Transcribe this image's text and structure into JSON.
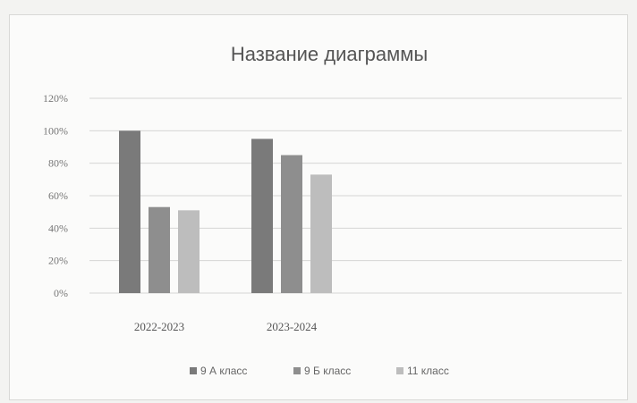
{
  "chart_data": {
    "type": "bar",
    "title": "Название диаграммы",
    "xlabel": "",
    "ylabel": "",
    "categories": [
      "2022-2023",
      "2023-2024"
    ],
    "series": [
      {
        "name": "9 А класс",
        "values": [
          1.0,
          0.95
        ],
        "color": "#7a7a7a"
      },
      {
        "name": "9 Б класс",
        "values": [
          0.53,
          0.85
        ],
        "color": "#8e8e8e"
      },
      {
        "name": "11 класс",
        "values": [
          0.51,
          0.73
        ],
        "color": "#bdbdbd"
      }
    ],
    "ylim": [
      0,
      1.2
    ],
    "yticks": [
      {
        "value": 0,
        "label": "0%"
      },
      {
        "value": 0.2,
        "label": "20%"
      },
      {
        "value": 0.4,
        "label": "40%"
      },
      {
        "value": 0.6,
        "label": "60%"
      },
      {
        "value": 0.8,
        "label": "80%"
      },
      {
        "value": 1.0,
        "label": "100%"
      },
      {
        "value": 1.2,
        "label": "120%"
      }
    ],
    "grid": true,
    "legend_position": "bottom"
  }
}
